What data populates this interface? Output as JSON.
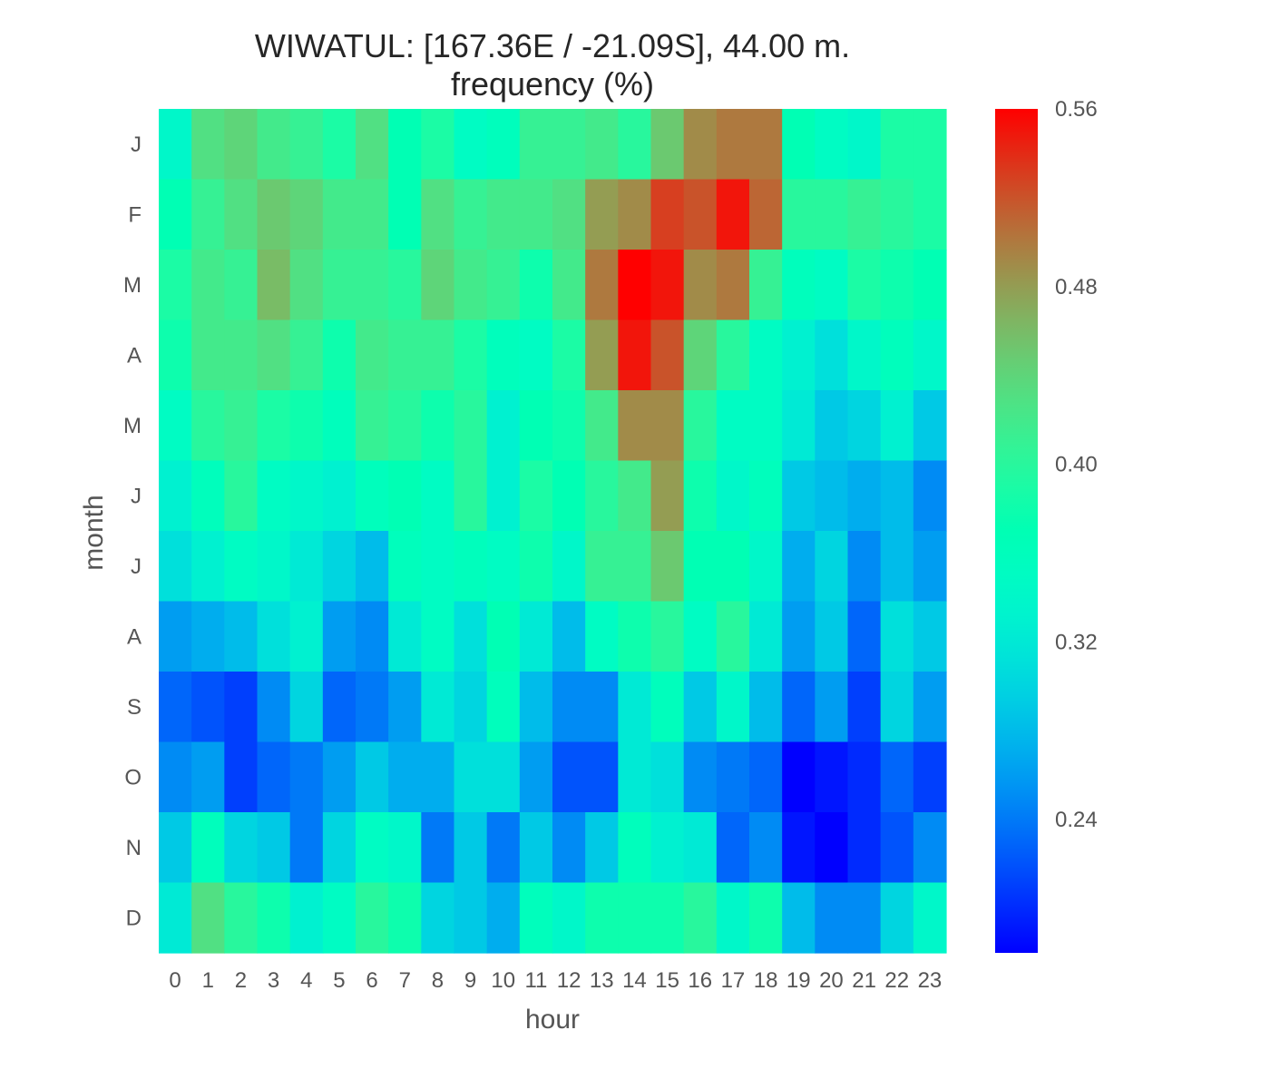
{
  "chart_data": {
    "type": "heatmap",
    "title": "WIWATUL: [167.36E / -21.09S], 44.00 m.",
    "subtitle": "frequency (%)",
    "xlabel": "hour",
    "ylabel": "month",
    "x": [
      "0",
      "1",
      "2",
      "3",
      "4",
      "5",
      "6",
      "7",
      "8",
      "9",
      "10",
      "11",
      "12",
      "13",
      "14",
      "15",
      "16",
      "17",
      "18",
      "19",
      "20",
      "21",
      "22",
      "23"
    ],
    "y": [
      "J",
      "F",
      "M",
      "A",
      "M",
      "J",
      "J",
      "A",
      "S",
      "O",
      "N",
      "D"
    ],
    "values": [
      [
        0.34,
        0.43,
        0.44,
        0.42,
        0.41,
        0.39,
        0.43,
        0.37,
        0.39,
        0.35,
        0.36,
        0.41,
        0.41,
        0.42,
        0.4,
        0.45,
        0.49,
        0.5,
        0.5,
        0.37,
        0.35,
        0.34,
        0.39,
        0.39
      ],
      [
        0.37,
        0.41,
        0.43,
        0.45,
        0.44,
        0.42,
        0.42,
        0.37,
        0.43,
        0.41,
        0.42,
        0.42,
        0.43,
        0.48,
        0.49,
        0.53,
        0.52,
        0.55,
        0.51,
        0.4,
        0.4,
        0.41,
        0.4,
        0.39
      ],
      [
        0.39,
        0.42,
        0.41,
        0.46,
        0.43,
        0.41,
        0.41,
        0.4,
        0.44,
        0.42,
        0.41,
        0.38,
        0.42,
        0.5,
        0.56,
        0.55,
        0.49,
        0.5,
        0.41,
        0.36,
        0.35,
        0.39,
        0.38,
        0.37
      ],
      [
        0.38,
        0.42,
        0.42,
        0.43,
        0.41,
        0.38,
        0.42,
        0.41,
        0.41,
        0.39,
        0.36,
        0.35,
        0.39,
        0.48,
        0.55,
        0.52,
        0.44,
        0.4,
        0.35,
        0.33,
        0.31,
        0.34,
        0.36,
        0.34
      ],
      [
        0.35,
        0.4,
        0.41,
        0.39,
        0.38,
        0.36,
        0.41,
        0.4,
        0.38,
        0.4,
        0.33,
        0.37,
        0.38,
        0.42,
        0.49,
        0.49,
        0.4,
        0.35,
        0.35,
        0.32,
        0.29,
        0.3,
        0.33,
        0.29
      ],
      [
        0.33,
        0.36,
        0.4,
        0.35,
        0.34,
        0.33,
        0.36,
        0.37,
        0.35,
        0.4,
        0.33,
        0.39,
        0.37,
        0.4,
        0.42,
        0.48,
        0.38,
        0.34,
        0.36,
        0.29,
        0.28,
        0.27,
        0.28,
        0.25
      ],
      [
        0.31,
        0.33,
        0.35,
        0.34,
        0.32,
        0.3,
        0.28,
        0.36,
        0.35,
        0.36,
        0.35,
        0.38,
        0.34,
        0.41,
        0.41,
        0.45,
        0.37,
        0.37,
        0.34,
        0.27,
        0.3,
        0.25,
        0.28,
        0.26
      ],
      [
        0.26,
        0.27,
        0.28,
        0.31,
        0.33,
        0.26,
        0.25,
        0.32,
        0.35,
        0.31,
        0.37,
        0.32,
        0.28,
        0.35,
        0.38,
        0.4,
        0.35,
        0.4,
        0.32,
        0.26,
        0.29,
        0.23,
        0.31,
        0.29
      ],
      [
        0.23,
        0.22,
        0.21,
        0.25,
        0.3,
        0.23,
        0.24,
        0.26,
        0.32,
        0.3,
        0.36,
        0.28,
        0.25,
        0.25,
        0.32,
        0.36,
        0.29,
        0.34,
        0.28,
        0.23,
        0.26,
        0.21,
        0.3,
        0.26
      ],
      [
        0.25,
        0.26,
        0.21,
        0.23,
        0.24,
        0.26,
        0.29,
        0.27,
        0.27,
        0.31,
        0.31,
        0.26,
        0.22,
        0.22,
        0.32,
        0.31,
        0.25,
        0.24,
        0.23,
        0.18,
        0.19,
        0.2,
        0.23,
        0.21
      ],
      [
        0.29,
        0.36,
        0.3,
        0.29,
        0.24,
        0.3,
        0.35,
        0.34,
        0.24,
        0.29,
        0.24,
        0.29,
        0.25,
        0.29,
        0.36,
        0.33,
        0.32,
        0.23,
        0.25,
        0.19,
        0.18,
        0.2,
        0.22,
        0.25
      ],
      [
        0.32,
        0.43,
        0.4,
        0.38,
        0.33,
        0.35,
        0.4,
        0.38,
        0.3,
        0.29,
        0.27,
        0.36,
        0.34,
        0.38,
        0.38,
        0.38,
        0.4,
        0.34,
        0.38,
        0.28,
        0.25,
        0.25,
        0.3,
        0.34
      ]
    ],
    "colorbar": {
      "ticks": [
        "0.24",
        "0.32",
        "0.40",
        "0.48",
        "0.56"
      ],
      "tick_values": [
        0.24,
        0.32,
        0.4,
        0.48,
        0.56
      ],
      "range": [
        0.18,
        0.56
      ],
      "colormap": "rainbow"
    },
    "grid": false
  }
}
